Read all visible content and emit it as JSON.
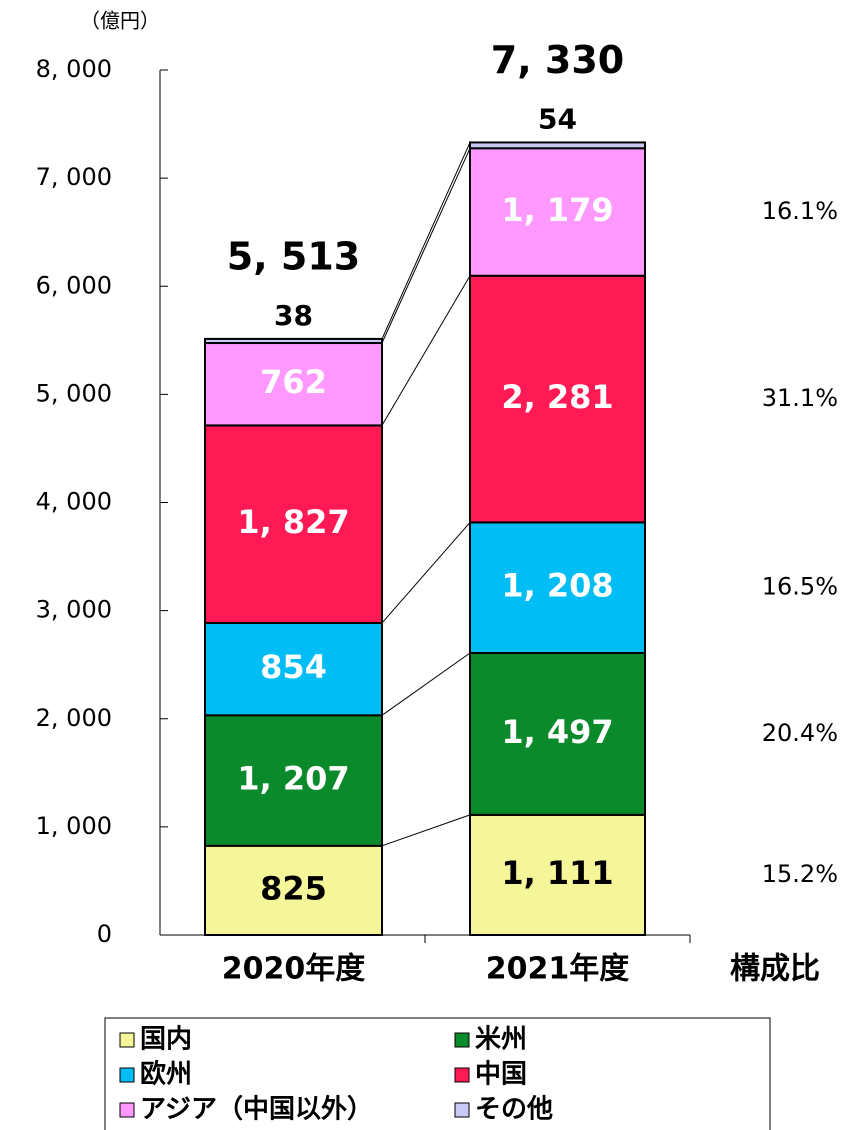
{
  "chart_data": {
    "type": "stacked_bar",
    "y_axis_label": "（億円）",
    "categories": [
      "2020年度",
      "2021年度"
    ],
    "series": [
      {
        "name": "国内",
        "color": "#f5f59a",
        "values": [
          825,
          1111
        ],
        "value_labels": [
          "825",
          "1, 111"
        ]
      },
      {
        "name": "米州",
        "color": "#0b8a2c",
        "values": [
          1207,
          1497
        ],
        "value_labels": [
          "1, 207",
          "1, 497"
        ]
      },
      {
        "name": "欧州",
        "color": "#00bdf5",
        "values": [
          854,
          1208
        ],
        "value_labels": [
          "854",
          "1, 208"
        ]
      },
      {
        "name": "中国",
        "color": "#ff1a55",
        "values": [
          1827,
          2281
        ],
        "value_labels": [
          "1, 827",
          "2, 281"
        ]
      },
      {
        "name": "アジア（中国以外）",
        "color": "#ff99ff",
        "values": [
          762,
          1179
        ],
        "value_labels": [
          "762",
          "1, 179"
        ]
      },
      {
        "name": "その他",
        "color": "#c9c9f5",
        "values": [
          38,
          54
        ],
        "value_labels": [
          "38",
          "54"
        ]
      }
    ],
    "totals": [
      5513,
      7330
    ],
    "total_labels": [
      "5, 513",
      "7, 330"
    ],
    "share_title": "構成比",
    "shares": [
      15.2,
      20.4,
      16.5,
      31.1,
      16.1
    ],
    "share_labels": [
      "15.2%",
      "20.4%",
      "16.5%",
      "31.1%",
      "16.1%"
    ],
    "ylim": [
      0,
      8000
    ],
    "yticks": [
      0,
      {
        "value": 1000,
        "label": "1, 000"
      },
      {
        "value": 2000,
        "label": "2, 000"
      },
      {
        "value": 3000,
        "label": "3, 000"
      },
      {
        "value": 4000,
        "label": "4, 000"
      },
      {
        "value": 5000,
        "label": "5, 000"
      },
      {
        "value": 6000,
        "label": "6, 000"
      },
      {
        "value": 7000,
        "label": "7, 000"
      },
      {
        "value": 8000,
        "label": "8, 000"
      }
    ]
  }
}
